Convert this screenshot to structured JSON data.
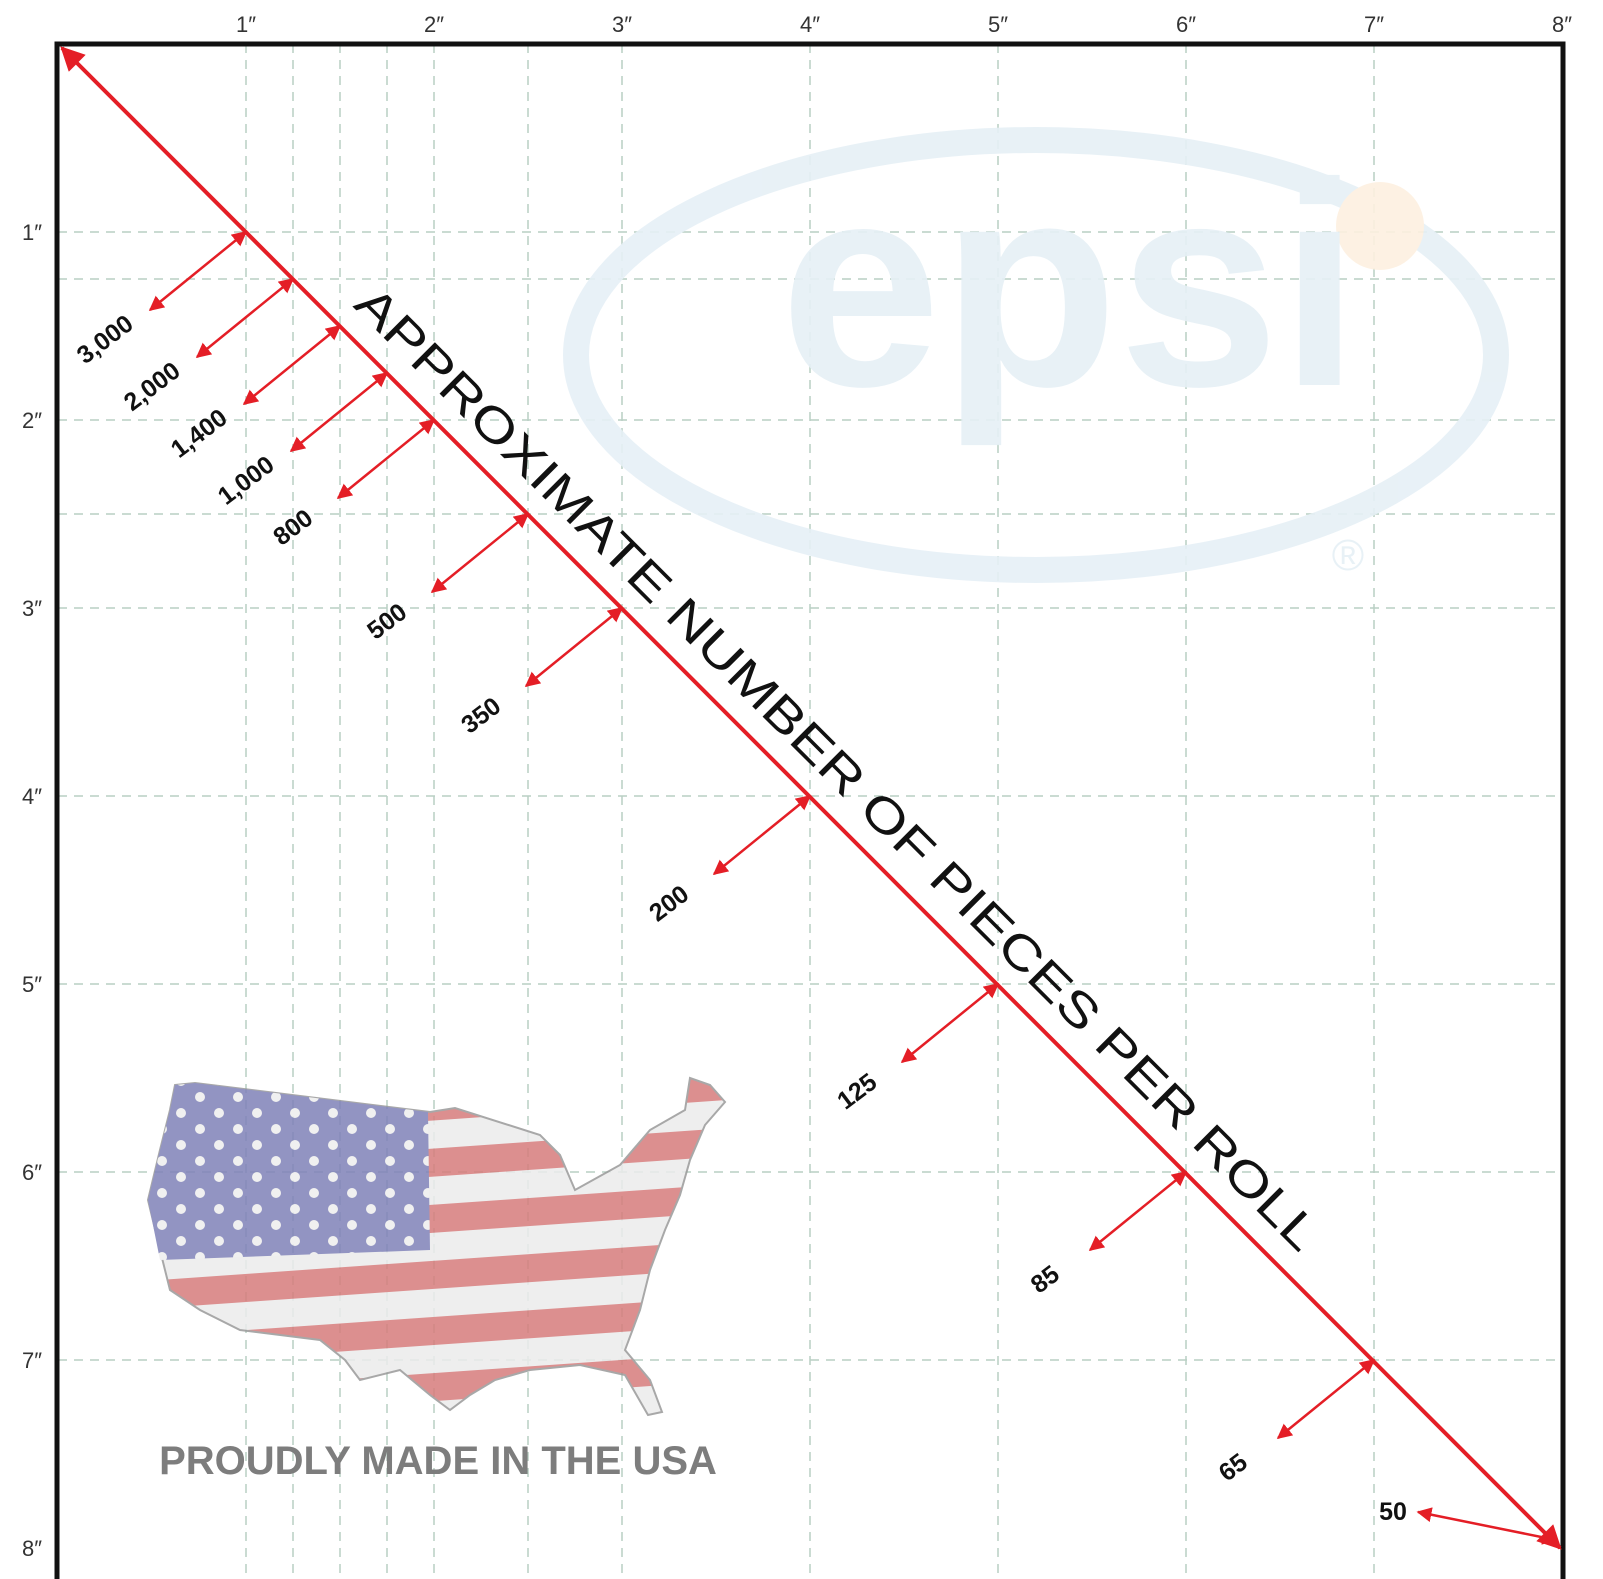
{
  "logo": {
    "text": "epsi",
    "mark": "®"
  },
  "x_ticks": [
    "1″",
    "2″",
    "3″",
    "4″",
    "5″",
    "6″",
    "7″",
    "8″"
  ],
  "y_ticks": [
    "1″",
    "2″",
    "3″",
    "4″",
    "5″",
    "6″",
    "7″",
    "8″"
  ],
  "diagonal_label": "APPROXIMATE NUMBER OF PIECES PER ROLL",
  "markers": [
    {
      "size": 1,
      "label": "3,000"
    },
    {
      "size": 1.25,
      "label": "2,000"
    },
    {
      "size": 1.5,
      "label": "1,400"
    },
    {
      "size": 1.75,
      "label": "1,000"
    },
    {
      "size": 2,
      "label": "800"
    },
    {
      "size": 2.5,
      "label": "500"
    },
    {
      "size": 3,
      "label": "350"
    },
    {
      "size": 4,
      "label": "200"
    },
    {
      "size": 5,
      "label": "125"
    },
    {
      "size": 6,
      "label": "85"
    },
    {
      "size": 7,
      "label": "65"
    },
    {
      "size": 8,
      "label": "50"
    }
  ],
  "footer": "PROUDLY MADE IN THE USA"
}
